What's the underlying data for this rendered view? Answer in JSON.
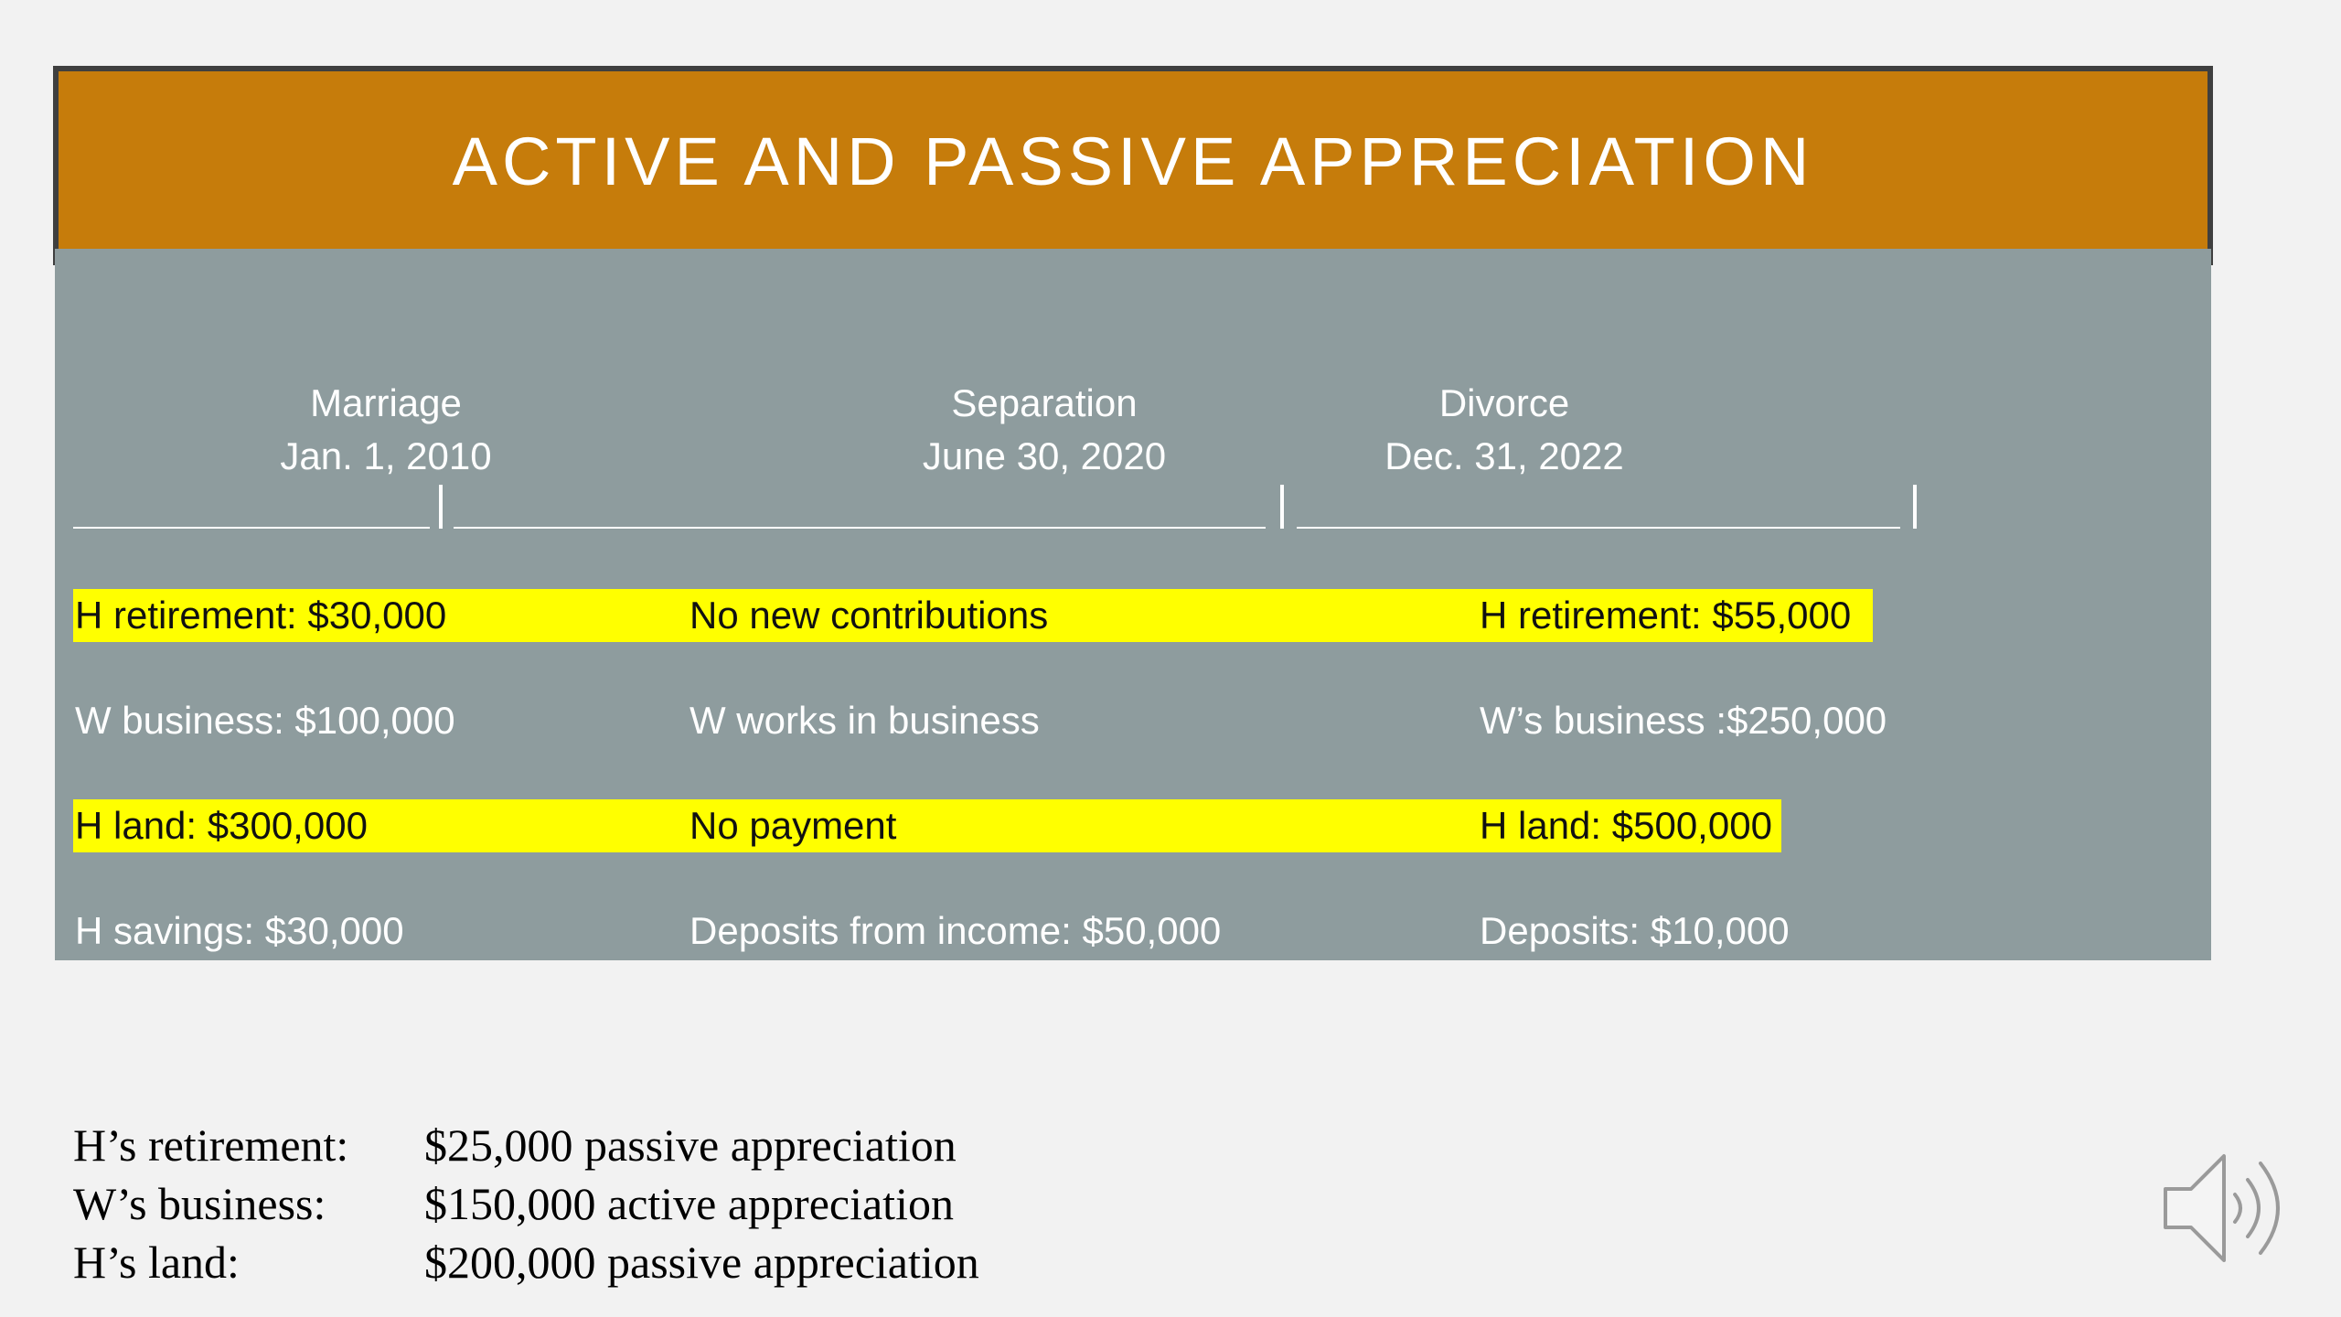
{
  "slide": {
    "title": "ACTIVE AND PASSIVE APPRECIATION"
  },
  "timeline": {
    "milestones": [
      {
        "name": "Marriage",
        "date": "Jan. 1, 2010"
      },
      {
        "name": "Separation",
        "date": "June 30, 2020"
      },
      {
        "name": "Divorce",
        "date": "Dec. 31, 2022"
      }
    ]
  },
  "rows": [
    {
      "start": "H retirement: $30,000",
      "middle": "No new contributions",
      "end": "H retirement: $55,000",
      "highlighted": true
    },
    {
      "start": "W business:  $100,000",
      "middle": "W works in business",
      "end": "W’s business :$250,000",
      "highlighted": false
    },
    {
      "start": "H land: $300,000",
      "middle": "No payment",
      "end": "H land: $500,000",
      "highlighted": true
    },
    {
      "start": "H savings: $30,000",
      "middle": "Deposits from income: $50,000",
      "end": "Deposits: $10,000",
      "highlighted": false
    }
  ],
  "summary": [
    {
      "label": "H’s retirement:",
      "value": "$25,000  passive appreciation"
    },
    {
      "label": "W’s business:",
      "value": "$150,000 active appreciation"
    },
    {
      "label": "H’s land:",
      "value": "$200,000 passive appreciation"
    }
  ],
  "colors": {
    "title_bar": "#c67c0b",
    "panel": "#8e9c9e",
    "highlight": "#ffff00",
    "background": "#f2f2f2"
  },
  "icons": {
    "audio": "speaker-icon"
  }
}
